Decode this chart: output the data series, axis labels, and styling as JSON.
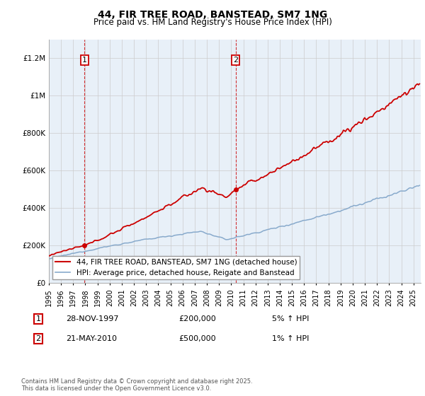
{
  "title": "44, FIR TREE ROAD, BANSTEAD, SM7 1NG",
  "subtitle": "Price paid vs. HM Land Registry's House Price Index (HPI)",
  "ylim": [
    0,
    1300000
  ],
  "yticks": [
    0,
    200000,
    400000,
    600000,
    800000,
    1000000,
    1200000
  ],
  "ytick_labels": [
    "£0",
    "£200K",
    "£400K",
    "£600K",
    "£800K",
    "£1M",
    "£1.2M"
  ],
  "legend_line1": "44, FIR TREE ROAD, BANSTEAD, SM7 1NG (detached house)",
  "legend_line2": "HPI: Average price, detached house, Reigate and Banstead",
  "line_color": "#cc0000",
  "hpi_color": "#88aacc",
  "plot_bg_color": "#e8f0f8",
  "sale1_year": 1997.917,
  "sale1_price": 200000,
  "sale1_label_price": "£200,000",
  "sale1_date": "28-NOV-1997",
  "sale1_hpi_text": "5% ↑ HPI",
  "sale2_year": 2010.375,
  "sale2_price": 500000,
  "sale2_label_price": "£500,000",
  "sale2_date": "21-MAY-2010",
  "sale2_hpi_text": "1% ↑ HPI",
  "footer": "Contains HM Land Registry data © Crown copyright and database right 2025.\nThis data is licensed under the Open Government Licence v3.0.",
  "background_color": "#ffffff",
  "grid_color": "#cccccc",
  "title_fontsize": 10,
  "subtitle_fontsize": 8.5,
  "tick_fontsize": 7.5,
  "annotation_fontsize": 8
}
